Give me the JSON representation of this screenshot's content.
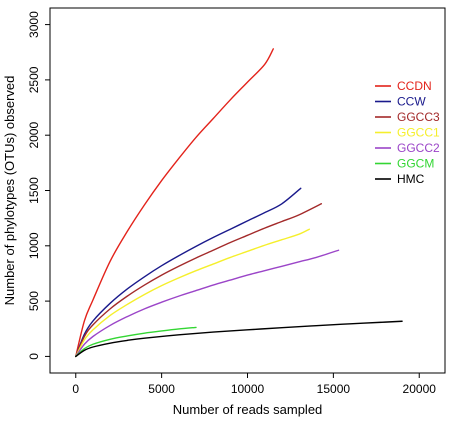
{
  "chart_data": {
    "type": "line",
    "title": "",
    "xlabel": "Number of reads sampled",
    "ylabel": "Number of phylotypes (OTUs) observed",
    "xlim": [
      -1500,
      21500
    ],
    "ylim": [
      -150,
      3150
    ],
    "xticks": [
      0,
      5000,
      10000,
      15000,
      20000
    ],
    "yticks": [
      0,
      500,
      1000,
      1500,
      2000,
      2500,
      3000
    ],
    "legend_position": "right-upper",
    "series": [
      {
        "name": "CCDN",
        "color": "#e3231b",
        "x": [
          0,
          500,
          1000,
          2000,
          3000,
          4000,
          5000,
          6000,
          7000,
          8000,
          9000,
          10000,
          11000,
          11500
        ],
        "y": [
          0,
          320,
          510,
          860,
          1130,
          1370,
          1590,
          1790,
          1980,
          2150,
          2320,
          2480,
          2640,
          2780
        ]
      },
      {
        "name": "CCW",
        "color": "#1a1a8c",
        "x": [
          0,
          500,
          1000,
          2000,
          3000,
          4000,
          5000,
          6000,
          7000,
          8000,
          9000,
          10000,
          11000,
          12000,
          13100
        ],
        "y": [
          0,
          200,
          320,
          480,
          610,
          720,
          820,
          910,
          995,
          1075,
          1150,
          1225,
          1300,
          1380,
          1520
        ]
      },
      {
        "name": "GGCC3",
        "color": "#a32a2a",
        "x": [
          0,
          500,
          1000,
          2000,
          3000,
          4000,
          5000,
          6000,
          7000,
          8000,
          9000,
          10000,
          11000,
          12000,
          13000,
          14300
        ],
        "y": [
          0,
          180,
          285,
          430,
          545,
          645,
          735,
          815,
          890,
          960,
          1030,
          1095,
          1160,
          1220,
          1280,
          1380
        ]
      },
      {
        "name": "GGCC1",
        "color": "#f5ef2c",
        "x": [
          0,
          500,
          1000,
          2000,
          3000,
          4000,
          5000,
          6000,
          7000,
          8000,
          9000,
          10000,
          11000,
          12000,
          13000,
          13600
        ],
        "y": [
          0,
          150,
          240,
          370,
          470,
          560,
          640,
          710,
          775,
          835,
          895,
          950,
          1005,
          1055,
          1105,
          1150
        ]
      },
      {
        "name": "GGCC2",
        "color": "#9b45c8",
        "x": [
          0,
          500,
          1000,
          2000,
          3000,
          4000,
          5000,
          6000,
          7000,
          8000,
          9000,
          10000,
          11000,
          12000,
          13000,
          14000,
          15300
        ],
        "y": [
          0,
          110,
          180,
          280,
          360,
          430,
          490,
          545,
          595,
          645,
          690,
          735,
          775,
          815,
          855,
          895,
          960
        ]
      },
      {
        "name": "GGCM",
        "color": "#33d633",
        "x": [
          0,
          500,
          1000,
          2000,
          3000,
          4000,
          5000,
          6000,
          7000
        ],
        "y": [
          0,
          70,
          110,
          155,
          185,
          210,
          230,
          248,
          262
        ]
      },
      {
        "name": "HMC",
        "color": "#000000",
        "x": [
          0,
          500,
          1000,
          2000,
          3000,
          4000,
          6000,
          8000,
          10000,
          12000,
          14000,
          16000,
          18000,
          19000
        ],
        "y": [
          0,
          55,
          85,
          120,
          145,
          165,
          195,
          220,
          240,
          260,
          278,
          295,
          310,
          318
        ]
      }
    ]
  }
}
